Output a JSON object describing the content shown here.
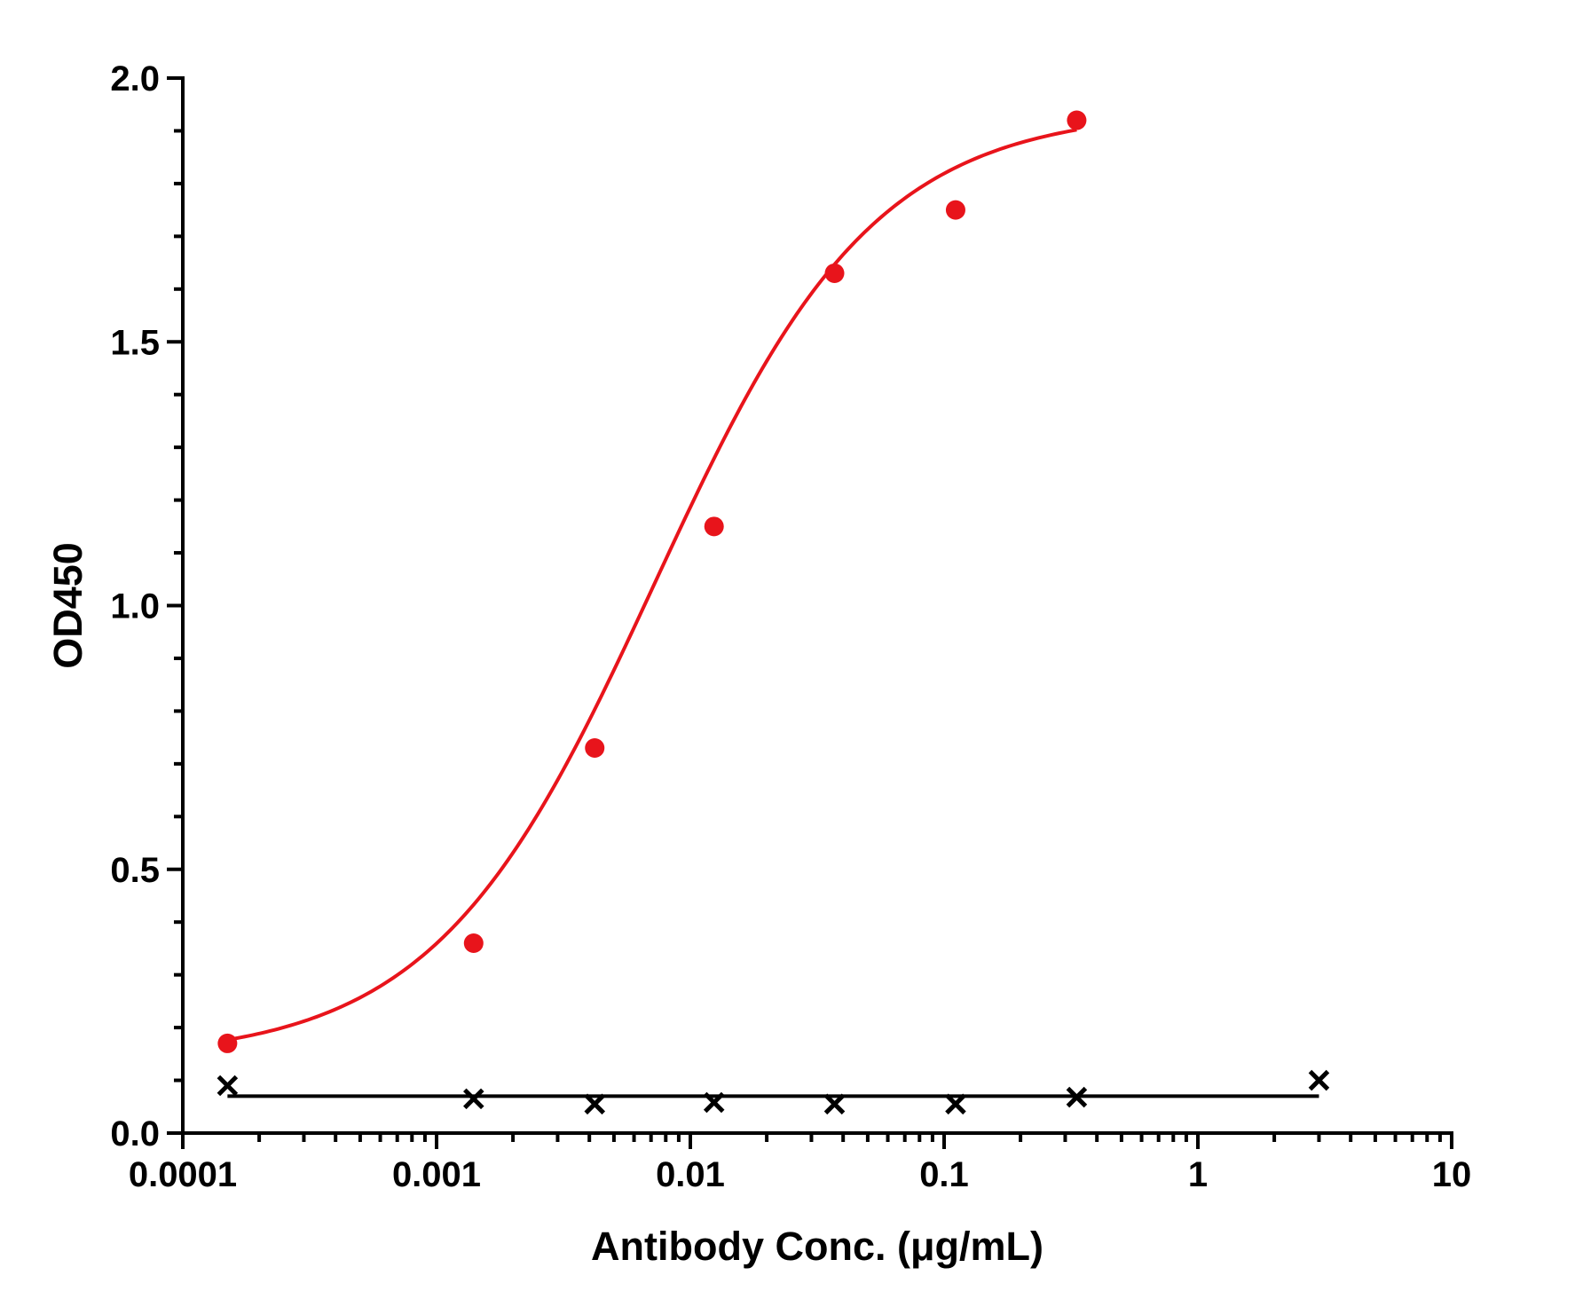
{
  "chart_data": {
    "type": "scatter",
    "title": "",
    "xlabel": "Antibody Conc. (μg/mL)",
    "ylabel": "OD450",
    "xscale": "log",
    "xlim": [
      0.0001,
      10
    ],
    "ylim": [
      0.0,
      2.0
    ],
    "xticks": [
      "0.0001",
      "0.001",
      "0.01",
      "0.1",
      "1",
      "10"
    ],
    "yticks": [
      "0.0",
      "0.5",
      "1.0",
      "1.5",
      "2.0"
    ],
    "grid": false,
    "legend": "none",
    "series": [
      {
        "marker": "circle",
        "color": "#e8141b",
        "x": [
          0.00015,
          0.0014,
          0.0042,
          0.0124,
          0.037,
          0.111,
          0.333
        ],
        "y": [
          0.17,
          0.36,
          0.73,
          1.15,
          1.63,
          1.75,
          1.92
        ],
        "fit": {
          "model": "4PL",
          "bottom": 0.14,
          "top": 1.94,
          "ec50": 0.0072,
          "hill": 1.0
        }
      },
      {
        "marker": "x",
        "color": "#000000",
        "x": [
          0.00015,
          0.0014,
          0.0042,
          0.0124,
          0.037,
          0.111,
          0.333,
          3.0
        ],
        "y": [
          0.09,
          0.065,
          0.055,
          0.058,
          0.055,
          0.055,
          0.068,
          0.1
        ],
        "fit": {
          "model": "constant",
          "value": 0.07
        }
      }
    ]
  }
}
